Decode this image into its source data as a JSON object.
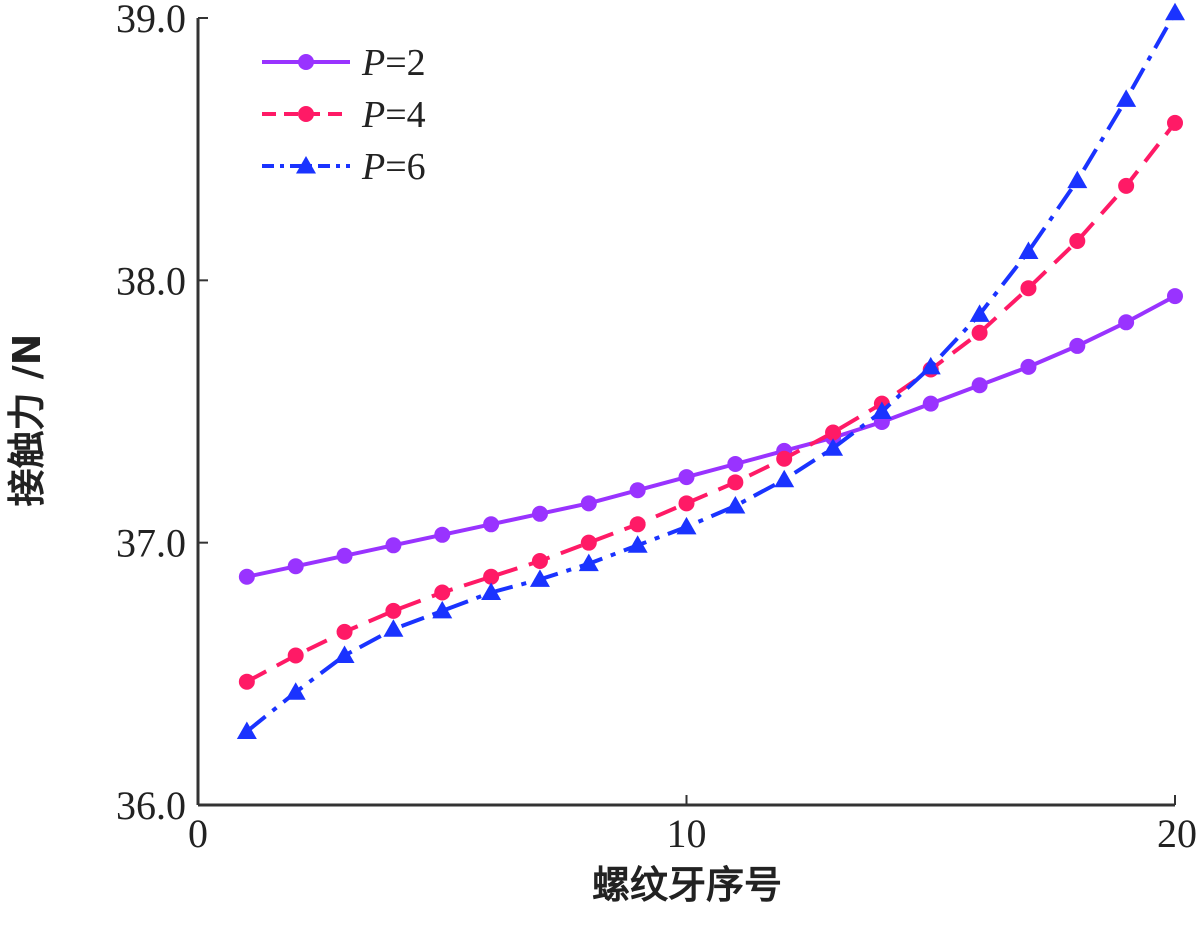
{
  "chart_data": {
    "type": "line",
    "title": "",
    "xlabel": "螺纹牙序号",
    "ylabel": "接触力 /N",
    "xlim": [
      0,
      20
    ],
    "ylim": [
      36.0,
      39.0
    ],
    "xticks": [
      "0",
      "10",
      "20"
    ],
    "yticks": [
      "36.0",
      "37.0",
      "38.0",
      "39.0"
    ],
    "grid": false,
    "legend_position": "top-left",
    "x": [
      1,
      2,
      3,
      4,
      5,
      6,
      7,
      8,
      9,
      10,
      11,
      12,
      13,
      14,
      15,
      16,
      17,
      18,
      19,
      20
    ],
    "series": [
      {
        "name": "P=2",
        "legend_italic": "P",
        "legend_rest": "=2",
        "color": "#9933ff",
        "line_style": "solid",
        "marker": "circle",
        "values": [
          36.87,
          36.91,
          36.95,
          36.99,
          37.03,
          37.07,
          37.11,
          37.15,
          37.2,
          37.25,
          37.3,
          37.35,
          37.4,
          37.46,
          37.53,
          37.6,
          37.67,
          37.75,
          37.84,
          37.94
        ]
      },
      {
        "name": "P=4",
        "legend_italic": "P",
        "legend_rest": "=4",
        "color": "#ff1a66",
        "line_style": "dashed",
        "marker": "circle",
        "values": [
          36.47,
          36.57,
          36.66,
          36.74,
          36.81,
          36.87,
          36.93,
          37.0,
          37.07,
          37.15,
          37.23,
          37.32,
          37.42,
          37.53,
          37.66,
          37.8,
          37.97,
          38.15,
          38.36,
          38.6
        ]
      },
      {
        "name": "P=6",
        "legend_italic": "P",
        "legend_rest": "=6",
        "color": "#1a33ff",
        "line_style": "dashdot",
        "marker": "triangle",
        "values": [
          36.28,
          36.43,
          36.57,
          36.67,
          36.74,
          36.81,
          36.86,
          36.92,
          36.99,
          37.06,
          37.14,
          37.24,
          37.36,
          37.5,
          37.67,
          37.87,
          38.11,
          38.38,
          38.69,
          39.02
        ]
      }
    ]
  }
}
